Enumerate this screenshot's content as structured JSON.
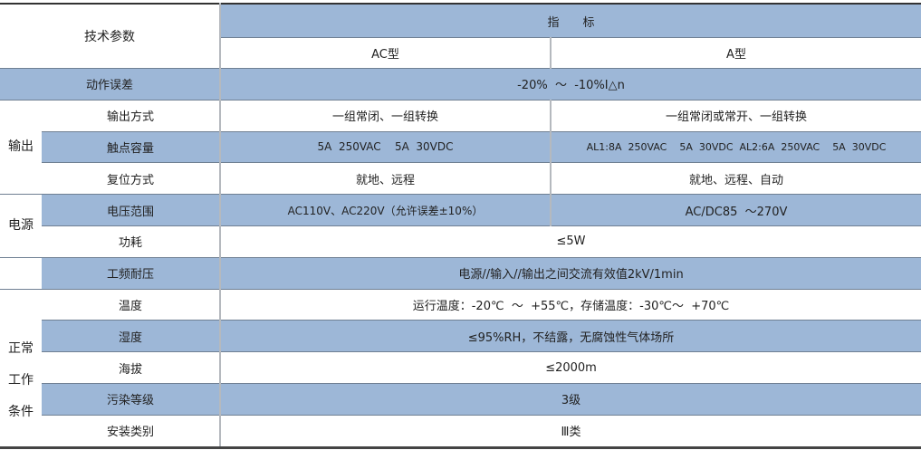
{
  "header": {
    "param": "技术参数",
    "indicator": "指　　标",
    "ac_type": "AC型",
    "a_type": "A型"
  },
  "rows": {
    "action_error": {
      "label": "动作误差",
      "value": "-20%  ～  -10%I△n"
    },
    "output": {
      "group": "输出",
      "mode": {
        "label": "输出方式",
        "ac": "一组常闭、一组转换",
        "a": "一组常闭或常开、一组转换"
      },
      "capacity": {
        "label": "触点容量",
        "ac": "5A  250VAC    5A  30VDC",
        "a": "AL1:8A  250VAC    5A  30VDC  AL2:6A  250VAC    5A  30VDC"
      },
      "reset": {
        "label": "复位方式",
        "ac": "就地、远程",
        "a": "就地、远程、自动"
      }
    },
    "power": {
      "group": "电源",
      "voltage": {
        "label": "电压范围",
        "ac": "AC110V、AC220V（允许误差±10%）",
        "a": "AC/DC85  ～270V"
      },
      "consumption": {
        "label": "功耗",
        "value": "≤5W"
      }
    },
    "withstand": {
      "label": "工频耐压",
      "value": "电源//输入//输出之间交流有效值2kV/1min"
    },
    "conditions": {
      "group": "正常\n工作\n条件",
      "temperature": {
        "label": "温度",
        "value": "运行温度：-20℃  ～  +55℃，存储温度：-30℃～  +70℃"
      },
      "humidity": {
        "label": "湿度",
        "value": "≤95%RH，不结露，无腐蚀性气体场所"
      },
      "altitude": {
        "label": "海拔",
        "value": "≤2000m"
      },
      "pollution": {
        "label": "污染等级",
        "value": "3级"
      },
      "install": {
        "label": "安装类别",
        "value": "Ⅲ类"
      }
    }
  },
  "colors": {
    "row_fill": "#9db7d7"
  }
}
